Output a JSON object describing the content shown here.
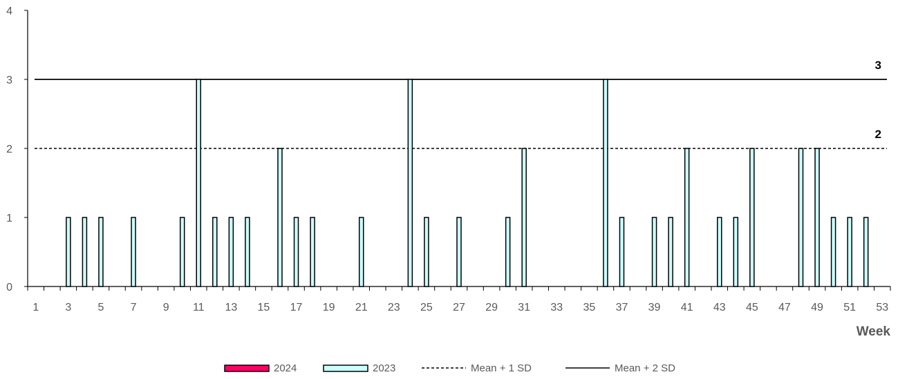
{
  "chart_data": {
    "type": "bar",
    "xlabel": "Week",
    "ylabel": "",
    "ylim": [
      0,
      4
    ],
    "y_ticks": [
      "0",
      "1",
      "2",
      "3",
      "4"
    ],
    "x_range": [
      1,
      53
    ],
    "x_tick_labels": [
      "1",
      "3",
      "5",
      "7",
      "9",
      "11",
      "13",
      "15",
      "17",
      "19",
      "21",
      "23",
      "25",
      "27",
      "29",
      "31",
      "33",
      "35",
      "37",
      "39",
      "41",
      "43",
      "45",
      "47",
      "49",
      "51",
      "53"
    ],
    "grid": false,
    "legend_position": "bottom",
    "series": [
      {
        "name": "2024",
        "color": "#ff0066",
        "border": "#000000",
        "weeks": [],
        "values": []
      },
      {
        "name": "2023",
        "color": "#ccffff",
        "border": "#000000",
        "weeks": [
          3,
          4,
          5,
          7,
          10,
          11,
          12,
          13,
          14,
          16,
          17,
          18,
          21,
          24,
          25,
          27,
          30,
          31,
          36,
          37,
          39,
          40,
          41,
          43,
          44,
          45,
          48,
          49,
          50,
          51,
          52
        ],
        "values": [
          1,
          1,
          1,
          1,
          1,
          3,
          1,
          1,
          1,
          2,
          1,
          1,
          1,
          3,
          1,
          1,
          1,
          2,
          3,
          1,
          1,
          1,
          2,
          1,
          1,
          2,
          2,
          2,
          1,
          1,
          1
        ]
      }
    ],
    "reference_lines": [
      {
        "name": "Mean + 1 SD",
        "value": 2,
        "style": "dashed",
        "label": "2"
      },
      {
        "name": "Mean + 2 SD",
        "value": 3,
        "style": "solid",
        "label": "3"
      }
    ]
  }
}
